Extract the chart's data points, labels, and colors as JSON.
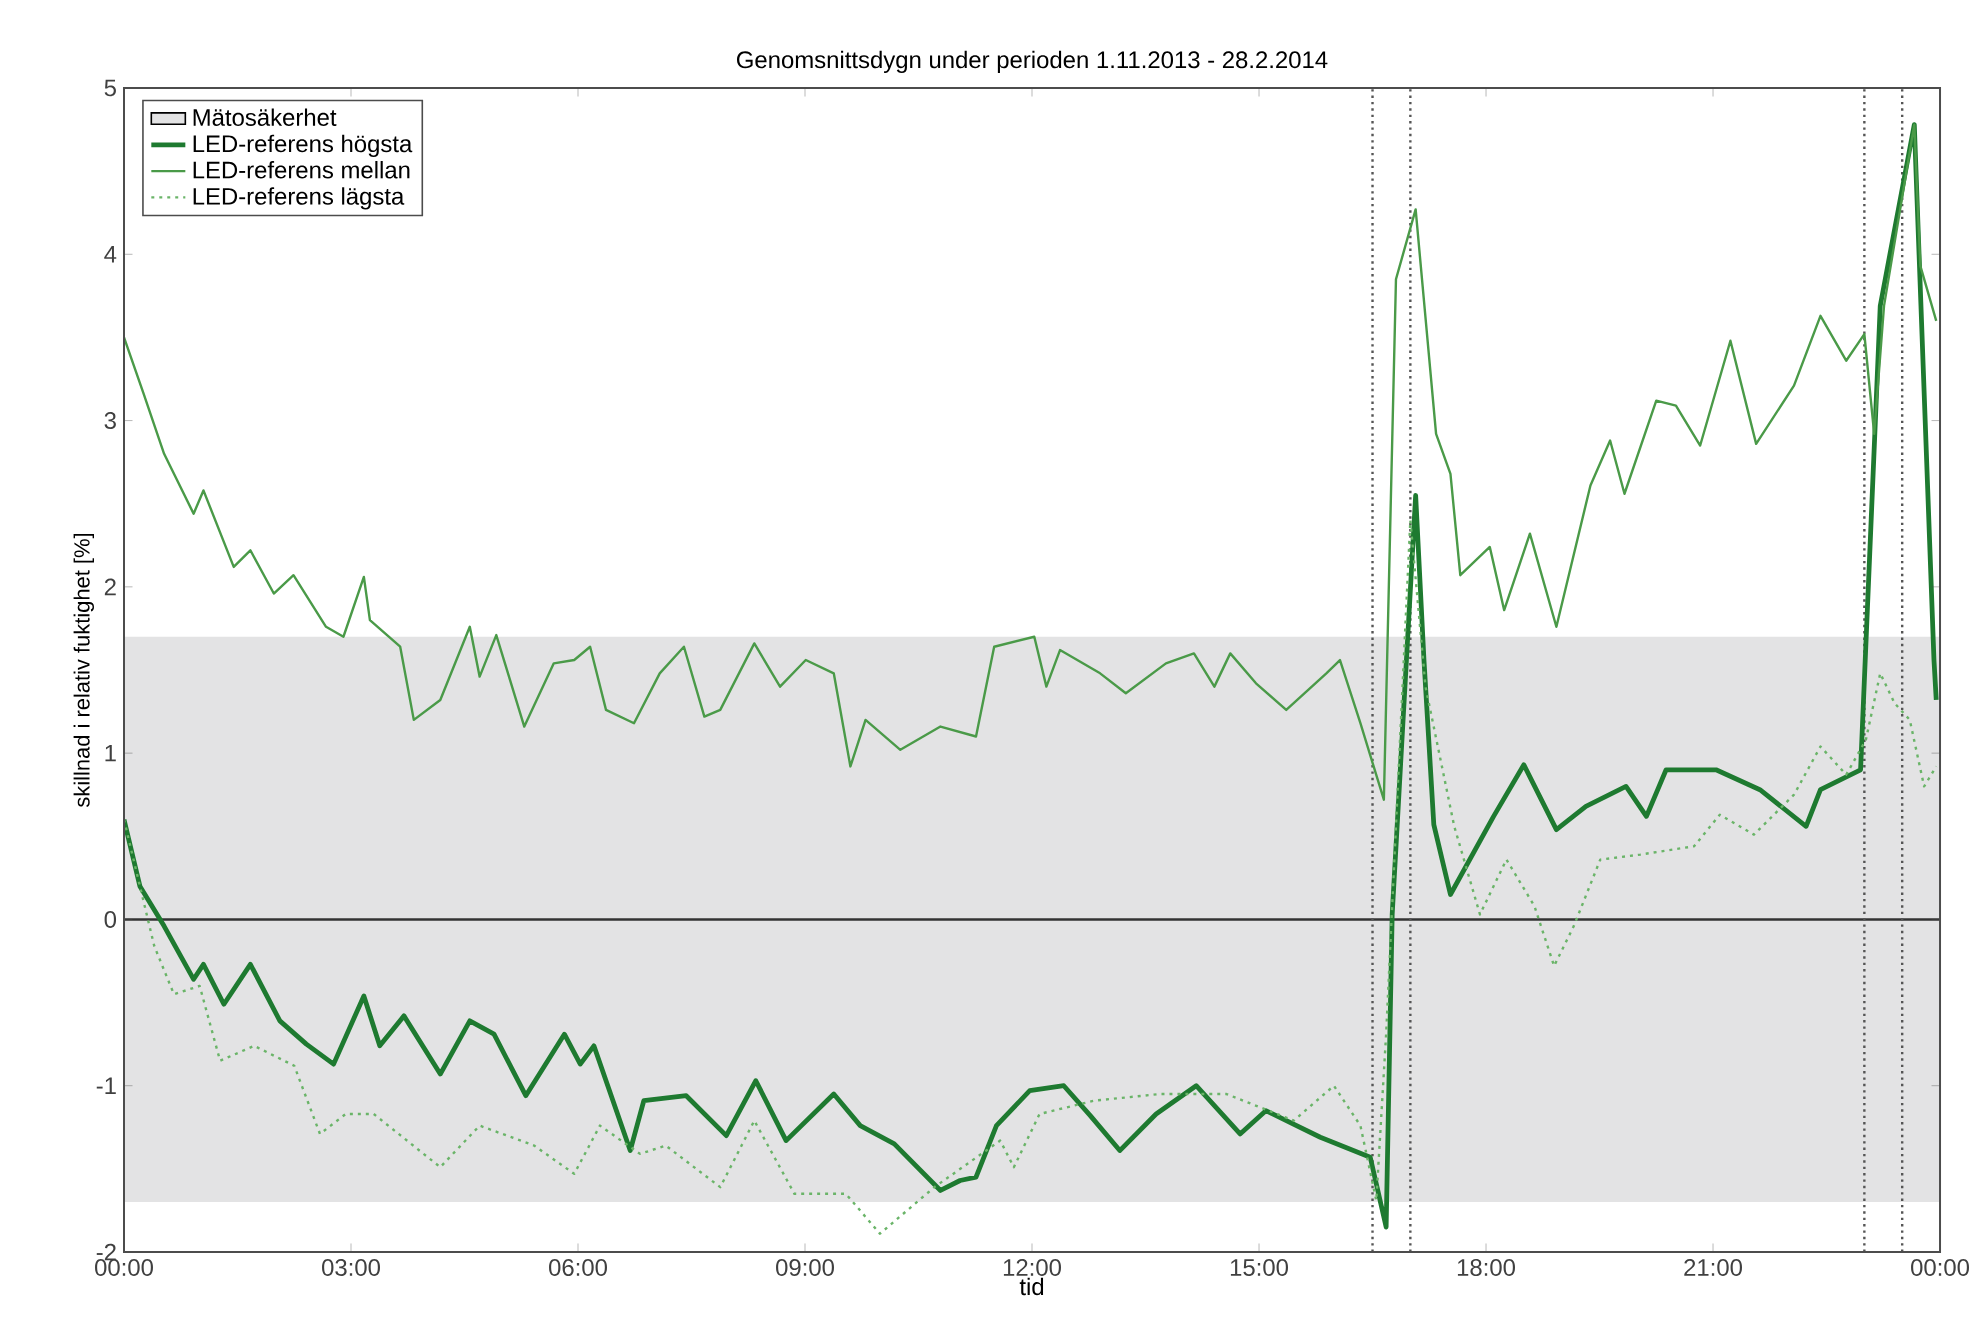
{
  "chart_data": {
    "type": "line",
    "title": "Genomsnittsdygn under perioden 1.11.2013 - 28.2.2014",
    "xlabel": "tid",
    "ylabel": "skillnad i relativ fuktighet [%]",
    "xlim": [
      0,
      24
    ],
    "ylim": [
      -2,
      5
    ],
    "xticks": [
      {
        "value": 0,
        "label": "00:00"
      },
      {
        "value": 3,
        "label": "03:00"
      },
      {
        "value": 6,
        "label": "06:00"
      },
      {
        "value": 9,
        "label": "09:00"
      },
      {
        "value": 12,
        "label": "12:00"
      },
      {
        "value": 15,
        "label": "15:00"
      },
      {
        "value": 18,
        "label": "18:00"
      },
      {
        "value": 21,
        "label": "21:00"
      },
      {
        "value": 24,
        "label": "00:00"
      }
    ],
    "yticks": [
      -2,
      -1,
      0,
      1,
      2,
      3,
      4,
      5
    ],
    "grid": false,
    "legend": "top left",
    "marker": "none",
    "bands": [
      {
        "axis": "y",
        "from": -1.7,
        "to": 1.7,
        "label": "Mätosäkerhet",
        "color": "#e3e3e4"
      }
    ],
    "ref_lines": [
      {
        "axis": "y",
        "value": 0,
        "color": "#333333",
        "line_style": "solid"
      },
      {
        "axis": "x",
        "value": 16.5,
        "color": "#555555",
        "line_style": "dotted"
      },
      {
        "axis": "x",
        "value": 17.0,
        "color": "#555555",
        "line_style": "dotted"
      },
      {
        "axis": "x",
        "value": 23.0,
        "color": "#555555",
        "line_style": "dotted"
      },
      {
        "axis": "x",
        "value": 23.5,
        "color": "#555555",
        "line_style": "dotted"
      }
    ],
    "series": [
      {
        "name": "LED-referens högsta",
        "color": "#1e7a30",
        "line_style": "solid",
        "x": [
          0,
          0.21,
          0.53,
          0.92,
          1.05,
          1.32,
          1.67,
          2.06,
          2.41,
          2.77,
          3.17,
          3.38,
          3.7,
          4.18,
          4.57,
          4.89,
          5.31,
          5.82,
          6.03,
          6.21,
          6.69,
          6.87,
          7.43,
          7.96,
          8.35,
          8.75,
          9.38,
          9.73,
          10.18,
          10.79,
          11.05,
          11.26,
          11.53,
          11.97,
          12.42,
          12.77,
          13.16,
          13.64,
          14.17,
          14.75,
          15.09,
          15.81,
          16.47,
          16.68,
          16.76,
          17.07,
          17.18,
          17.31,
          17.53,
          18.1,
          18.5,
          18.93,
          19.32,
          19.85,
          20.12,
          20.38,
          21.04,
          21.62,
          22.23,
          22.42,
          22.95,
          23.21,
          23.66,
          23.92,
          23.95
        ],
        "values": [
          0.6,
          0.2,
          -0.04,
          -0.36,
          -0.27,
          -0.51,
          -0.27,
          -0.61,
          -0.75,
          -0.87,
          -0.46,
          -0.76,
          -0.58,
          -0.93,
          -0.61,
          -0.69,
          -1.06,
          -0.69,
          -0.87,
          -0.76,
          -1.39,
          -1.09,
          -1.06,
          -1.3,
          -0.97,
          -1.33,
          -1.05,
          -1.24,
          -1.35,
          -1.63,
          -1.57,
          -1.55,
          -1.24,
          -1.03,
          -1.0,
          -1.18,
          -1.39,
          -1.17,
          -1.0,
          -1.29,
          -1.15,
          -1.31,
          -1.43,
          -1.85,
          0.03,
          2.55,
          1.56,
          0.57,
          0.15,
          0.62,
          0.93,
          0.54,
          0.68,
          0.8,
          0.62,
          0.9,
          0.9,
          0.78,
          0.56,
          0.78,
          0.9,
          3.69,
          4.78,
          1.56,
          1.32
        ]
      },
      {
        "name": "LED-referens mellan",
        "color": "#4a9a48",
        "line_style": "solid",
        "x": [
          0,
          0.26,
          0.53,
          0.92,
          1.05,
          1.45,
          1.67,
          1.98,
          2.24,
          2.67,
          2.9,
          3.17,
          3.25,
          3.65,
          3.83,
          4.18,
          4.57,
          4.7,
          4.92,
          5.29,
          5.68,
          5.95,
          6.16,
          6.37,
          6.74,
          7.08,
          7.4,
          7.67,
          7.88,
          8.33,
          8.67,
          9.01,
          9.38,
          9.6,
          9.8,
          10.26,
          10.79,
          11.26,
          11.5,
          12.03,
          12.19,
          12.37,
          12.9,
          13.24,
          13.77,
          14.14,
          14.41,
          14.62,
          14.96,
          15.36,
          15.89,
          16.07,
          16.34,
          16.65,
          16.81,
          17.07,
          17.34,
          17.53,
          17.66,
          18.05,
          18.24,
          18.58,
          18.93,
          19.11,
          19.38,
          19.64,
          19.83,
          20.25,
          20.51,
          20.83,
          21.23,
          21.57,
          22.07,
          22.42,
          22.76,
          23.0,
          23.13,
          23.26,
          23.66,
          23.74,
          23.95
        ],
        "values": [
          3.5,
          3.16,
          2.8,
          2.44,
          2.58,
          2.12,
          2.22,
          1.96,
          2.07,
          1.76,
          1.7,
          2.06,
          1.8,
          1.64,
          1.2,
          1.32,
          1.76,
          1.46,
          1.71,
          1.16,
          1.54,
          1.56,
          1.64,
          1.26,
          1.18,
          1.48,
          1.64,
          1.22,
          1.26,
          1.66,
          1.4,
          1.56,
          1.48,
          0.92,
          1.2,
          1.02,
          1.16,
          1.1,
          1.64,
          1.7,
          1.4,
          1.62,
          1.48,
          1.36,
          1.54,
          1.6,
          1.4,
          1.6,
          1.42,
          1.26,
          1.48,
          1.56,
          1.18,
          0.72,
          3.85,
          4.27,
          2.92,
          2.68,
          2.07,
          2.24,
          1.86,
          2.32,
          1.76,
          2.1,
          2.61,
          2.88,
          2.56,
          3.12,
          3.09,
          2.85,
          3.48,
          2.86,
          3.21,
          3.63,
          3.36,
          3.52,
          2.92,
          3.69,
          4.78,
          3.93,
          3.6
        ]
      },
      {
        "name": "LED-referens lägsta",
        "color": "#6ab468",
        "line_style": "dotted",
        "x": [
          0,
          0.4,
          0.66,
          1.0,
          1.27,
          1.72,
          2.25,
          2.59,
          2.93,
          3.3,
          4.18,
          4.7,
          5.42,
          5.95,
          6.29,
          6.82,
          7.16,
          7.88,
          8.33,
          8.86,
          9.54,
          9.99,
          10.71,
          11.58,
          11.76,
          12.1,
          12.82,
          13.69,
          14.57,
          15.46,
          15.99,
          16.34,
          16.55,
          16.68,
          17.0,
          17.2,
          17.58,
          17.92,
          18.27,
          18.64,
          18.9,
          19.16,
          19.51,
          20.04,
          20.75,
          21.09,
          21.54,
          22.07,
          22.42,
          22.76,
          23.02,
          23.21,
          23.4,
          23.6,
          23.79,
          23.95
        ],
        "values": [
          0.6,
          -0.16,
          -0.45,
          -0.4,
          -0.85,
          -0.76,
          -0.88,
          -1.29,
          -1.17,
          -1.17,
          -1.49,
          -1.24,
          -1.36,
          -1.53,
          -1.24,
          -1.41,
          -1.36,
          -1.61,
          -1.21,
          -1.65,
          -1.65,
          -1.89,
          -1.61,
          -1.33,
          -1.49,
          -1.17,
          -1.09,
          -1.05,
          -1.05,
          -1.21,
          -1.0,
          -1.24,
          -1.69,
          -0.69,
          2.4,
          1.4,
          0.56,
          0.03,
          0.36,
          0.08,
          -0.28,
          -0.04,
          0.36,
          0.39,
          0.44,
          0.63,
          0.51,
          0.75,
          1.04,
          0.87,
          1.08,
          1.48,
          1.3,
          1.2,
          0.8,
          0.92
        ]
      }
    ]
  }
}
